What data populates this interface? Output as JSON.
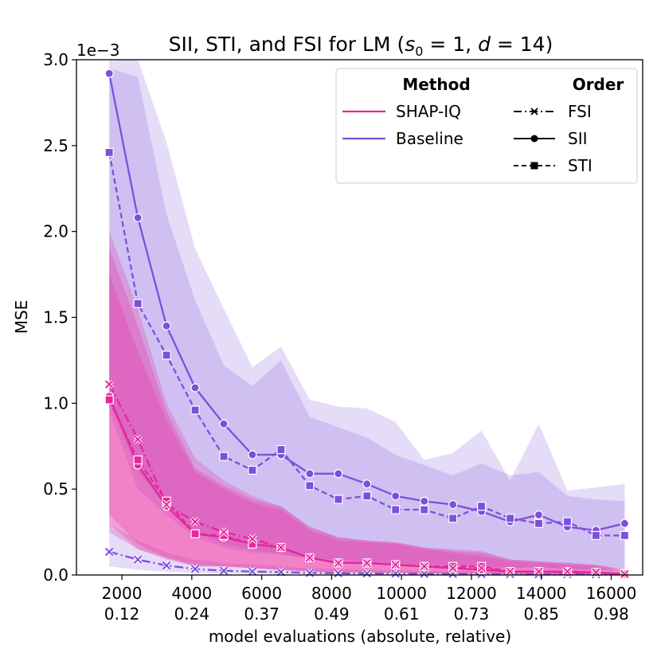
{
  "chart_data": {
    "type": "line",
    "title_main": "SII, STI, and FSI for LM (",
    "title_s": "s",
    "title_s_sub": "0",
    "title_eq1": " = 1, ",
    "title_d": "d",
    "title_eq2": " = 14)",
    "xlabel": "model evaluations (absolute, relative)",
    "ylabel": "MSE",
    "y_scale_label": "1e−3",
    "xlim": [
      700,
      16900
    ],
    "ylim": [
      0,
      3.0
    ],
    "x_ticks": [
      {
        "value": 2000,
        "abs": "2000",
        "rel": "0.12"
      },
      {
        "value": 4000,
        "abs": "4000",
        "rel": "0.24"
      },
      {
        "value": 6000,
        "abs": "6000",
        "rel": "0.37"
      },
      {
        "value": 8000,
        "abs": "8000",
        "rel": "0.49"
      },
      {
        "value": 10000,
        "abs": "10000",
        "rel": "0.61"
      },
      {
        "value": 12000,
        "abs": "12000",
        "rel": "0.73"
      },
      {
        "value": 14000,
        "abs": "14000",
        "rel": "0.85"
      },
      {
        "value": 16000,
        "abs": "16000",
        "rel": "0.98"
      }
    ],
    "y_ticks": [
      {
        "value": 0.0,
        "label": "0.0"
      },
      {
        "value": 0.5,
        "label": "0.5"
      },
      {
        "value": 1.0,
        "label": "1.0"
      },
      {
        "value": 1.5,
        "label": "1.5"
      },
      {
        "value": 2.0,
        "label": "2.0"
      },
      {
        "value": 2.5,
        "label": "2.5"
      },
      {
        "value": 3.0,
        "label": "3.0"
      }
    ],
    "x": [
      1638,
      2457,
      3277,
      4096,
      4915,
      5734,
      6554,
      7373,
      8192,
      9011,
      9830,
      10650,
      11469,
      12288,
      13107,
      13926,
      14746,
      15565,
      16384
    ],
    "colors": {
      "shapiq": "#e6279e",
      "baseline": "#7e4fdb"
    },
    "series": [
      {
        "name": "Baseline SII",
        "method": "Baseline",
        "order": "SII",
        "marker": "circle",
        "values": [
          2.92,
          2.08,
          1.45,
          1.09,
          0.88,
          0.7,
          0.7,
          0.59,
          0.59,
          0.53,
          0.46,
          0.43,
          0.41,
          0.37,
          0.31,
          0.35,
          0.28,
          0.26,
          0.3
        ],
        "band_low": [
          1.0,
          0.6,
          0.4,
          0.25,
          0.18,
          0.15,
          0.12,
          0.1,
          0.09,
          0.08,
          0.07,
          0.06,
          0.06,
          0.05,
          0.04,
          0.05,
          0.03,
          0.03,
          0.04
        ],
        "band_high": [
          3.0,
          3.0,
          2.52,
          1.9,
          1.55,
          1.21,
          1.33,
          1.02,
          0.98,
          0.97,
          0.89,
          0.67,
          0.71,
          0.84,
          0.55,
          0.88,
          0.49,
          0.51,
          0.53
        ]
      },
      {
        "name": "Baseline STI",
        "method": "Baseline",
        "order": "STI",
        "marker": "square",
        "values": [
          2.46,
          1.58,
          1.28,
          0.96,
          0.69,
          0.61,
          0.73,
          0.52,
          0.44,
          0.46,
          0.38,
          0.38,
          0.33,
          0.4,
          0.33,
          0.3,
          0.31,
          0.23,
          0.23
        ],
        "band_low": [
          0.95,
          0.5,
          0.35,
          0.22,
          0.16,
          0.13,
          0.12,
          0.09,
          0.08,
          0.07,
          0.06,
          0.06,
          0.05,
          0.05,
          0.04,
          0.04,
          0.04,
          0.03,
          0.03
        ],
        "band_high": [
          2.95,
          2.9,
          2.1,
          1.6,
          1.22,
          1.1,
          1.25,
          0.92,
          0.86,
          0.8,
          0.7,
          0.64,
          0.58,
          0.65,
          0.58,
          0.6,
          0.46,
          0.44,
          0.43
        ]
      },
      {
        "name": "Baseline FSI",
        "method": "Baseline",
        "order": "FSI",
        "marker": "x",
        "values": [
          0.135,
          0.09,
          0.055,
          0.035,
          0.025,
          0.02,
          0.017,
          0.012,
          0.01,
          0.009,
          0.008,
          0.007,
          0.006,
          0.005,
          0.005,
          0.004,
          0.004,
          0.003,
          0.003
        ],
        "band_low": [
          0.05,
          0.03,
          0.02,
          0.012,
          0.008,
          0.006,
          0.005,
          0.004,
          0.003,
          0.003,
          0.002,
          0.002,
          0.002,
          0.002,
          0.001,
          0.001,
          0.001,
          0.001,
          0.001
        ],
        "band_high": [
          0.3,
          0.2,
          0.13,
          0.09,
          0.07,
          0.06,
          0.05,
          0.04,
          0.035,
          0.03,
          0.028,
          0.025,
          0.022,
          0.02,
          0.018,
          0.016,
          0.015,
          0.014,
          0.013
        ]
      },
      {
        "name": "SHAP-IQ SII",
        "method": "SHAP-IQ",
        "order": "SII",
        "marker": "circle",
        "values": [
          1.04,
          0.64,
          0.4,
          0.24,
          0.22,
          0.18,
          0.16,
          0.1,
          0.07,
          0.07,
          0.06,
          0.05,
          0.04,
          0.03,
          0.02,
          0.02,
          0.02,
          0.015,
          0.005
        ],
        "band_low": [
          0.25,
          0.15,
          0.09,
          0.05,
          0.05,
          0.04,
          0.03,
          0.02,
          0.015,
          0.015,
          0.012,
          0.01,
          0.008,
          0.006,
          0.004,
          0.004,
          0.003,
          0.003,
          0.001
        ],
        "band_high": [
          1.75,
          1.3,
          0.9,
          0.6,
          0.5,
          0.42,
          0.38,
          0.26,
          0.2,
          0.19,
          0.18,
          0.15,
          0.13,
          0.11,
          0.08,
          0.07,
          0.06,
          0.05,
          0.02
        ]
      },
      {
        "name": "SHAP-IQ STI",
        "method": "SHAP-IQ",
        "order": "STI",
        "marker": "square",
        "values": [
          1.02,
          0.67,
          0.43,
          0.24,
          0.23,
          0.18,
          0.16,
          0.1,
          0.07,
          0.07,
          0.06,
          0.05,
          0.05,
          0.05,
          0.02,
          0.02,
          0.015,
          0.015,
          0.005
        ],
        "band_low": [
          0.3,
          0.15,
          0.1,
          0.05,
          0.05,
          0.04,
          0.03,
          0.02,
          0.015,
          0.015,
          0.012,
          0.01,
          0.01,
          0.01,
          0.004,
          0.004,
          0.003,
          0.003,
          0.001
        ],
        "band_high": [
          1.9,
          1.45,
          0.95,
          0.62,
          0.52,
          0.44,
          0.4,
          0.28,
          0.22,
          0.2,
          0.19,
          0.16,
          0.15,
          0.14,
          0.09,
          0.08,
          0.07,
          0.06,
          0.03
        ]
      },
      {
        "name": "SHAP-IQ FSI",
        "method": "SHAP-IQ",
        "order": "FSI",
        "marker": "x",
        "values": [
          1.11,
          0.79,
          0.41,
          0.31,
          0.25,
          0.21,
          0.16,
          0.1,
          0.07,
          0.07,
          0.06,
          0.05,
          0.04,
          0.04,
          0.02,
          0.02,
          0.02,
          0.015,
          0.005
        ],
        "band_low": [
          0.35,
          0.18,
          0.1,
          0.06,
          0.05,
          0.04,
          0.03,
          0.02,
          0.015,
          0.015,
          0.012,
          0.01,
          0.008,
          0.008,
          0.004,
          0.004,
          0.003,
          0.003,
          0.001
        ],
        "band_high": [
          2.0,
          1.55,
          1.0,
          0.68,
          0.55,
          0.46,
          0.4,
          0.28,
          0.22,
          0.2,
          0.19,
          0.16,
          0.14,
          0.13,
          0.09,
          0.08,
          0.07,
          0.06,
          0.03
        ]
      }
    ],
    "legend": {
      "position": "top-right",
      "method_header": "Method",
      "order_header": "Order",
      "methods": [
        {
          "label": "SHAP-IQ",
          "color": "#e6279e"
        },
        {
          "label": "Baseline",
          "color": "#7e4fdb"
        }
      ],
      "orders": [
        {
          "label": "FSI",
          "style": "dash-dot",
          "marker": "x"
        },
        {
          "label": "SII",
          "style": "solid",
          "marker": "circle"
        },
        {
          "label": "STI",
          "style": "dashed",
          "marker": "square"
        }
      ]
    }
  }
}
